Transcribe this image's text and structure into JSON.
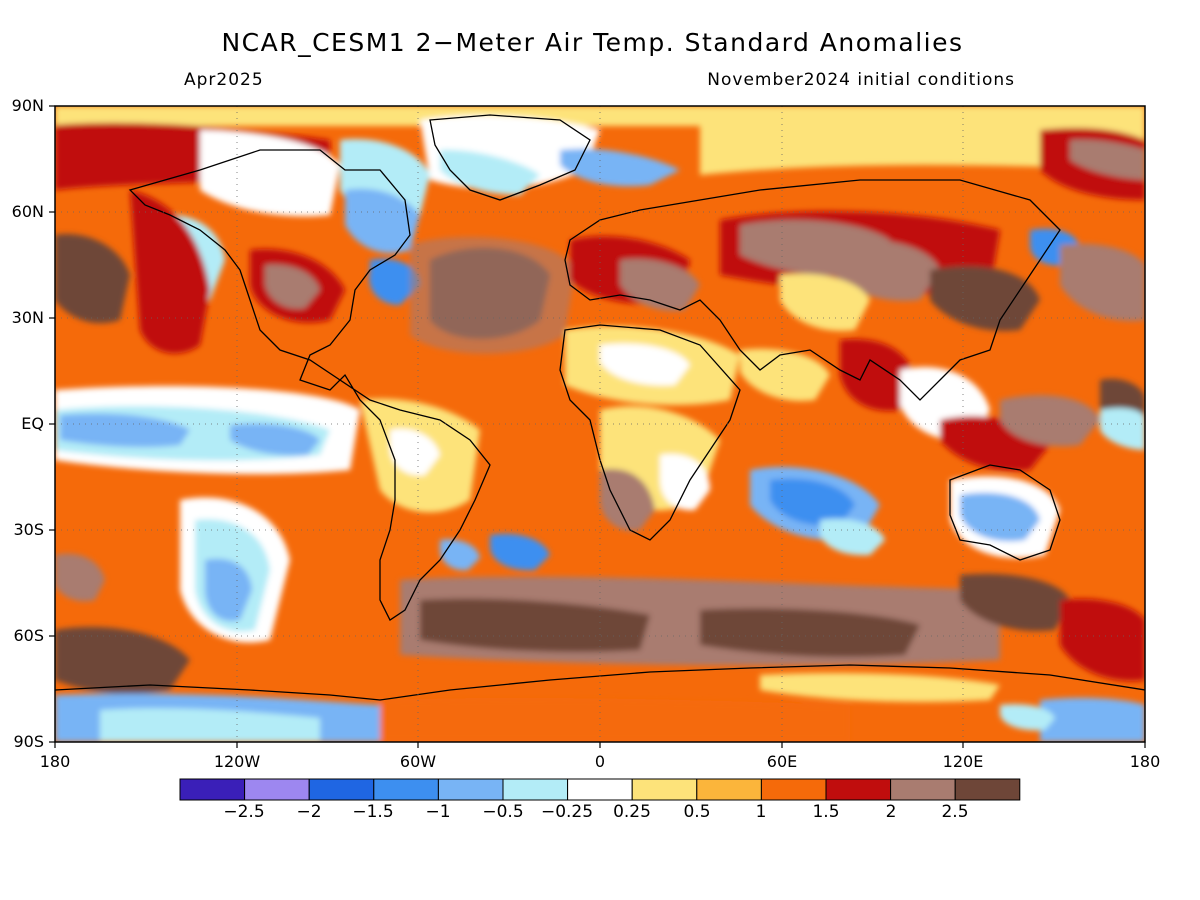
{
  "header": {
    "title": "NCAR_CESM1 2−Meter Air Temp. Standard Anomalies",
    "valid_month": "Apr2025",
    "init": "November2024 initial conditions"
  },
  "axes": {
    "lat_labels": [
      "90N",
      "60N",
      "30N",
      "EQ",
      "30S",
      "60S",
      "90S"
    ],
    "lon_labels": [
      "180",
      "120W",
      "60W",
      "0",
      "60E",
      "120E",
      "180"
    ]
  },
  "colorbar": {
    "colors": [
      "#3a1fb8",
      "#9d87f0",
      "#1f66e3",
      "#3d8ff0",
      "#78b4f5",
      "#b3ecf7",
      "#ffffff",
      "#fde37a",
      "#fbb53b",
      "#f56a0a",
      "#c00d0d",
      "#a97c70",
      "#6e4638"
    ],
    "labels": [
      "−2.5",
      "−2",
      "−1.5",
      "−1",
      "−0.5",
      "−0.25",
      "0.25",
      "0.5",
      "1",
      "1.5",
      "2",
      "2.5"
    ]
  },
  "map_style": {
    "ocean_base": "#f56a0a",
    "coastline": "#000000",
    "grid_line": "dotted"
  }
}
